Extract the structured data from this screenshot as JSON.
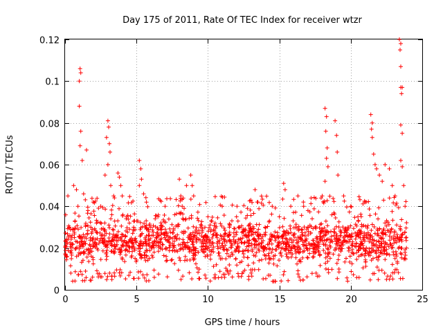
{
  "chart_data": {
    "type": "scatter",
    "title": "Day 175 of 2011, Rate Of TEC Index for receiver wtzr",
    "xlabel": "GPS time / hours",
    "ylabel": "ROTI / TECUs",
    "xlim": [
      0,
      25
    ],
    "ylim": [
      0,
      0.12
    ],
    "xticks": [
      0,
      5,
      10,
      15,
      20,
      25
    ],
    "xtick_labels": [
      "0",
      "5",
      "10",
      "15",
      "20",
      "25"
    ],
    "yticks": [
      0,
      0.02,
      0.04,
      0.06,
      0.08,
      0.1,
      0.12
    ],
    "ytick_labels": [
      "0",
      "0.02",
      "0.04",
      "0.06",
      "0.08",
      "0.1",
      "0.12"
    ],
    "grid": true,
    "marker": "+",
    "series_color": "#ff0000",
    "series": [
      {
        "name": "ROTI",
        "points": [
          [
            0.1,
            0.016
          ],
          [
            0.2,
            0.045
          ],
          [
            0.3,
            0.03
          ],
          [
            0.4,
            0.008
          ],
          [
            0.5,
            0.022
          ],
          [
            0.6,
            0.05
          ],
          [
            0.7,
            0.033
          ],
          [
            0.8,
            0.048
          ],
          [
            0.9,
            0.04
          ],
          [
            1.0,
            0.1
          ],
          [
            1.05,
            0.106
          ],
          [
            1.1,
            0.104
          ],
          [
            1.0,
            0.088
          ],
          [
            1.1,
            0.076
          ],
          [
            1.05,
            0.069
          ],
          [
            1.2,
            0.062
          ],
          [
            1.3,
            0.046
          ],
          [
            1.5,
            0.067
          ],
          [
            1.6,
            0.038
          ],
          [
            1.8,
            0.03
          ],
          [
            2.0,
            0.022
          ],
          [
            2.2,
            0.032
          ],
          [
            2.5,
            0.04
          ],
          [
            2.8,
            0.055
          ],
          [
            2.9,
            0.073
          ],
          [
            3.0,
            0.081
          ],
          [
            3.05,
            0.078
          ],
          [
            3.1,
            0.07
          ],
          [
            3.15,
            0.066
          ],
          [
            3.0,
            0.06
          ],
          [
            3.2,
            0.05
          ],
          [
            3.4,
            0.045
          ],
          [
            3.7,
            0.056
          ],
          [
            3.8,
            0.054
          ],
          [
            3.9,
            0.05
          ],
          [
            4.0,
            0.045
          ],
          [
            4.3,
            0.035
          ],
          [
            4.5,
            0.032
          ],
          [
            4.8,
            0.03
          ],
          [
            5.2,
            0.062
          ],
          [
            5.3,
            0.058
          ],
          [
            5.35,
            0.053
          ],
          [
            5.5,
            0.046
          ],
          [
            5.7,
            0.042
          ],
          [
            5.2,
            0.05
          ],
          [
            6.0,
            0.03
          ],
          [
            6.5,
            0.035
          ],
          [
            7.0,
            0.04
          ],
          [
            7.3,
            0.025
          ],
          [
            8.0,
            0.053
          ],
          [
            8.1,
            0.045
          ],
          [
            8.2,
            0.04
          ],
          [
            8.5,
            0.05
          ],
          [
            8.8,
            0.055
          ],
          [
            8.9,
            0.05
          ],
          [
            9.0,
            0.045
          ],
          [
            9.5,
            0.03
          ],
          [
            10.0,
            0.035
          ],
          [
            10.5,
            0.032
          ],
          [
            11.0,
            0.04
          ],
          [
            11.5,
            0.03
          ],
          [
            12.0,
            0.035
          ],
          [
            12.5,
            0.028
          ],
          [
            13.0,
            0.043
          ],
          [
            13.3,
            0.048
          ],
          [
            13.5,
            0.042
          ],
          [
            14.0,
            0.03
          ],
          [
            14.5,
            0.04
          ],
          [
            15.0,
            0.035
          ],
          [
            15.3,
            0.051
          ],
          [
            15.4,
            0.048
          ],
          [
            15.8,
            0.04
          ],
          [
            16.3,
            0.045
          ],
          [
            16.7,
            0.04
          ],
          [
            17.0,
            0.038
          ],
          [
            17.5,
            0.03
          ],
          [
            18.0,
            0.045
          ],
          [
            18.2,
            0.087
          ],
          [
            18.3,
            0.083
          ],
          [
            18.25,
            0.076
          ],
          [
            18.35,
            0.068
          ],
          [
            18.3,
            0.063
          ],
          [
            18.4,
            0.059
          ],
          [
            18.2,
            0.052
          ],
          [
            18.9,
            0.081
          ],
          [
            19.0,
            0.074
          ],
          [
            19.05,
            0.066
          ],
          [
            19.1,
            0.055
          ],
          [
            19.5,
            0.045
          ],
          [
            19.8,
            0.03
          ],
          [
            20.0,
            0.04
          ],
          [
            20.5,
            0.035
          ],
          [
            21.0,
            0.042
          ],
          [
            21.4,
            0.084
          ],
          [
            21.5,
            0.08
          ],
          [
            21.45,
            0.077
          ],
          [
            21.5,
            0.073
          ],
          [
            21.6,
            0.065
          ],
          [
            21.7,
            0.06
          ],
          [
            21.8,
            0.058
          ],
          [
            22.0,
            0.055
          ],
          [
            22.2,
            0.052
          ],
          [
            22.4,
            0.06
          ],
          [
            22.7,
            0.058
          ],
          [
            22.9,
            0.05
          ],
          [
            23.1,
            0.045
          ],
          [
            23.4,
            0.12
          ],
          [
            23.5,
            0.118
          ],
          [
            23.45,
            0.115
          ],
          [
            23.5,
            0.107
          ],
          [
            23.5,
            0.097
          ],
          [
            23.6,
            0.097
          ],
          [
            23.55,
            0.094
          ],
          [
            23.5,
            0.079
          ],
          [
            23.6,
            0.075
          ],
          [
            23.5,
            0.062
          ],
          [
            23.6,
            0.059
          ],
          [
            23.7,
            0.05
          ],
          [
            23.8,
            0.04
          ]
        ],
        "dense_band": {
          "x_range": [
            0,
            23.9
          ],
          "y_typical_range": [
            0.008,
            0.035
          ],
          "y_center": 0.018,
          "y_min": 0.004,
          "point_count": 1800
        }
      }
    ]
  }
}
